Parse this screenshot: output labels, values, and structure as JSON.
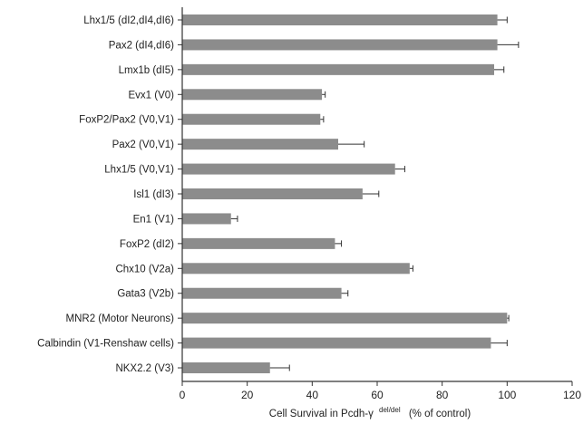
{
  "chart_data": {
    "type": "bar",
    "orientation": "horizontal",
    "categories": [
      "Lhx1/5 (dI2,dI4,dI6)",
      "Pax2 (dI4,dI6)",
      "Lmx1b (dI5)",
      "Evx1 (V0)",
      "FoxP2/Pax2 (V0,V1)",
      "Pax2 (V0,V1)",
      "Lhx1/5 (V0,V1)",
      "Isl1 (dI3)",
      "En1 (V1)",
      "FoxP2 (dI2)",
      "Chx10 (V2a)",
      "Gata3 (V2b)",
      "MNR2 (Motor Neurons)",
      "Calbindin (V1-Renshaw cells)",
      "NKX2.2 (V3)"
    ],
    "values": [
      97,
      97,
      96,
      43,
      42.5,
      48,
      65.5,
      55.5,
      15,
      47,
      70,
      49,
      100,
      95,
      27
    ],
    "errors": [
      3,
      6.5,
      3,
      1,
      1,
      8,
      3,
      5,
      2,
      2,
      1,
      2,
      0.5,
      5,
      6
    ],
    "xlim": [
      0,
      120
    ],
    "x_ticks": [
      0,
      20,
      40,
      60,
      80,
      100,
      120
    ],
    "x_tick_labels": [
      "0",
      "20",
      "40",
      "60",
      "80",
      "100",
      "120"
    ],
    "xlabel": {
      "prefix": "Cell Survival in Pcdh-γ",
      "superscript": "del/del",
      "suffix": "(% of control)"
    },
    "ylabel": "",
    "title": "",
    "grid": false,
    "bar_color": "#8c8c8c",
    "axis_color": "#333333"
  }
}
